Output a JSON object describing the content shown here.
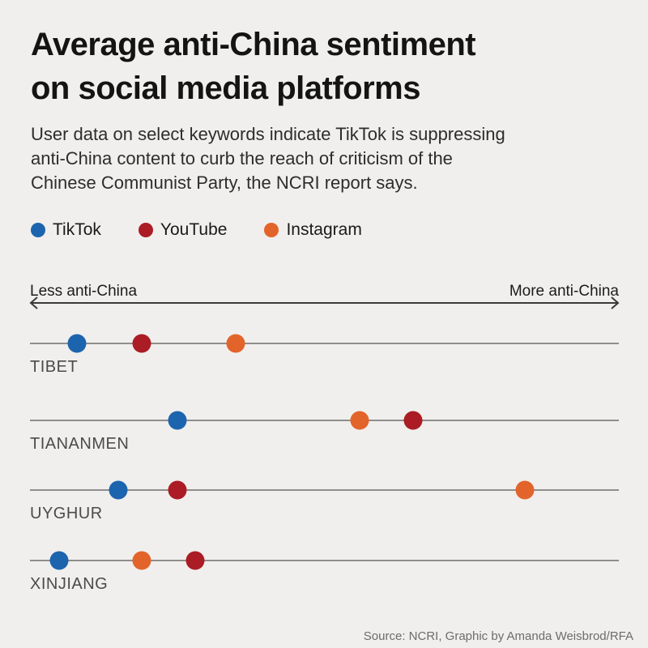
{
  "page": {
    "background_color": "#f0efed"
  },
  "header": {
    "title_line1": "Average anti-China sentiment",
    "title_line2": "on social media platforms",
    "subtitle_lines": [
      "User data on select keywords indicate TikTok is suppressing",
      "anti-China content to curb the reach of criticism of the",
      "Chinese Communist Party, the NCRI report says."
    ]
  },
  "chart_data": {
    "type": "scatter",
    "title": "Average anti-China sentiment on social media platforms",
    "axis": {
      "left_label": "Less anti-China",
      "right_label": "More anti-China",
      "range": [
        0,
        1
      ],
      "numeric_ticks": false,
      "grid": false,
      "note": "values are normalized 0-1 positions between 'Less anti-China' and 'More anti-China'"
    },
    "legend_position": "top-left",
    "series": [
      {
        "name": "TikTok",
        "color": "#1d64ae"
      },
      {
        "name": "YouTube",
        "color": "#ab1c25"
      },
      {
        "name": "Instagram",
        "color": "#e3642b"
      }
    ],
    "categories": [
      "TIBET",
      "TIANANMEN",
      "UYGHUR",
      "XINJIANG"
    ],
    "rows": [
      {
        "category": "TIBET",
        "points": [
          {
            "series": "TikTok",
            "value": 0.08
          },
          {
            "series": "YouTube",
            "value": 0.19
          },
          {
            "series": "Instagram",
            "value": 0.35
          }
        ]
      },
      {
        "category": "TIANANMEN",
        "points": [
          {
            "series": "TikTok",
            "value": 0.25
          },
          {
            "series": "Instagram",
            "value": 0.56
          },
          {
            "series": "YouTube",
            "value": 0.65
          }
        ]
      },
      {
        "category": "UYGHUR",
        "points": [
          {
            "series": "TikTok",
            "value": 0.15
          },
          {
            "series": "YouTube",
            "value": 0.25
          },
          {
            "series": "Instagram",
            "value": 0.84
          }
        ]
      },
      {
        "category": "XINJIANG",
        "points": [
          {
            "series": "TikTok",
            "value": 0.05
          },
          {
            "series": "Instagram",
            "value": 0.19
          },
          {
            "series": "YouTube",
            "value": 0.28
          }
        ]
      }
    ]
  },
  "footer": {
    "source": "Source: NCRI, Graphic by Amanda Weisbrod/RFA"
  }
}
